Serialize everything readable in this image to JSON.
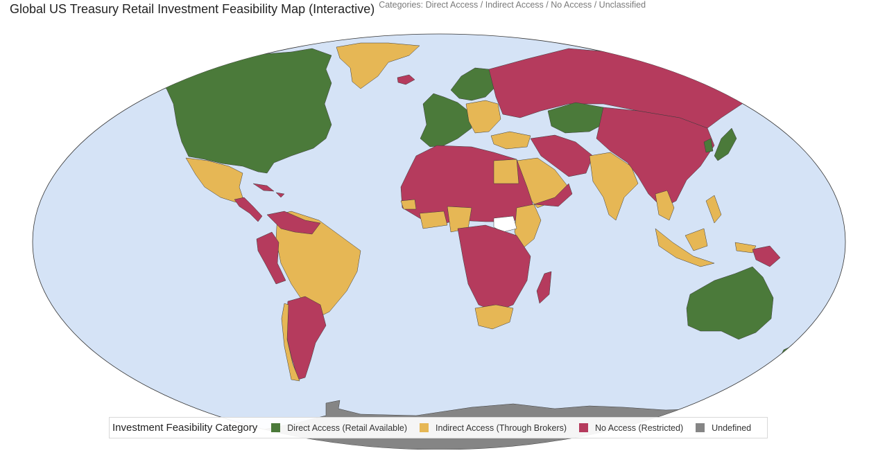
{
  "header": {
    "title": "Global US Treasury Retail Investment Feasibility Map (Interactive)",
    "subtitle": "Categories: Direct Access / Indirect Access / No Access / Unclassified"
  },
  "colors": {
    "ocean": "#d5e3f6",
    "direct": "#4b7a3a",
    "indirect": "#e6b755",
    "no_access": "#b53b5d",
    "undefined": "#858585",
    "unclassified": "#ffffff",
    "border": "#333333"
  },
  "legend": {
    "title": "Investment Feasibility Category",
    "items": [
      {
        "label": "Direct Access (Retail Available)",
        "color": "#4b7a3a"
      },
      {
        "label": "Indirect Access (Through Brokers)",
        "color": "#e6b755"
      },
      {
        "label": "No Access (Restricted)",
        "color": "#b53b5d"
      },
      {
        "label": "Undefined",
        "color": "#858585"
      }
    ]
  }
}
